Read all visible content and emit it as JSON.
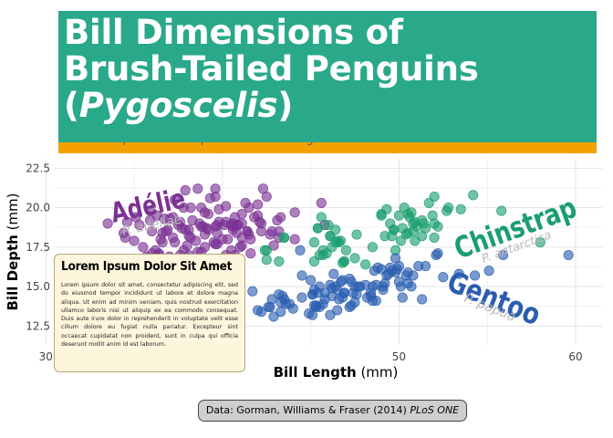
{
  "title": {
    "line1": "Bill Dimensions of",
    "line2": "Brush-Tailed Penguins",
    "paren_open": "(",
    "genus": "Pygoscelis",
    "paren_close": ")"
  },
  "subtitle": "A scatter plot of bill depth versus bill length.",
  "caption": {
    "prefix": "Data: Gorman, Williams & Fraser (2014) ",
    "journal": "PLoS ONE"
  },
  "textbox": {
    "title": "Lorem Ipsum Dolor Sit Amet",
    "body": "Lorem ipsum dolor sit amet, consectetur adipiscing elit, sed do eiusmod tempor incididunt ut labore et dolore magna aliqua. Ut enim ad minim veniam, quis nostrud exercitation ullamco laboris nisi ut aliquip ex ea commodo consequat. Duis aute irure dolor in reprehenderit in voluptate velit esse cillum dolore eu fugiat nulla pariatur. Excepteur sint occaecat cupidatat non proident, sunt in culpa qui officia deserunt mollit anim id est laborum."
  },
  "colors": {
    "adelie": "#7b3294",
    "chinstrap": "#1a9e6e",
    "gentoo": "#2a5db0",
    "title_bg": "#2aa88a",
    "strip": "#f2a100"
  },
  "chart_data": {
    "type": "scatter",
    "xlabel_bold": "Bill Length",
    "xlabel_unit": " (mm)",
    "ylabel_bold": "Bill Depth",
    "ylabel_unit": " (mm)",
    "xlim": [
      30.5,
      61.5
    ],
    "ylim": [
      11.3,
      23.1
    ],
    "xticks": [
      30,
      40,
      50,
      60
    ],
    "yticks": [
      12.5,
      15.0,
      17.5,
      20.0,
      22.5
    ],
    "grid": true,
    "legend": "direct labels",
    "series": [
      {
        "name": "Adélie",
        "species_label": "P. adeliae",
        "points": [
          [
            33.5,
            19.0
          ],
          [
            34.5,
            18.1
          ],
          [
            35.0,
            17.9
          ],
          [
            35.3,
            18.9
          ],
          [
            35.7,
            16.9
          ],
          [
            35.9,
            19.2
          ],
          [
            36.0,
            17.1
          ],
          [
            36.2,
            17.3
          ],
          [
            36.4,
            17.0
          ],
          [
            36.5,
            18.0
          ],
          [
            36.6,
            17.8
          ],
          [
            36.7,
            19.3
          ],
          [
            36.8,
            18.5
          ],
          [
            36.9,
            18.6
          ],
          [
            37.0,
            16.9
          ],
          [
            37.2,
            18.1
          ],
          [
            37.3,
            17.8
          ],
          [
            37.5,
            18.9
          ],
          [
            37.6,
            19.1
          ],
          [
            37.7,
            18.7
          ],
          [
            37.8,
            17.3
          ],
          [
            37.9,
            18.6
          ],
          [
            38.0,
            17.6
          ],
          [
            38.1,
            18.6
          ],
          [
            38.2,
            18.1
          ],
          [
            38.3,
            19.2
          ],
          [
            38.5,
            17.9
          ],
          [
            38.6,
            21.2
          ],
          [
            38.7,
            19.0
          ],
          [
            38.8,
            17.2
          ],
          [
            38.9,
            18.8
          ],
          [
            39.0,
            17.5
          ],
          [
            39.1,
            18.7
          ],
          [
            39.2,
            19.6
          ],
          [
            39.3,
            20.6
          ],
          [
            39.5,
            16.7
          ],
          [
            39.6,
            17.7
          ],
          [
            39.7,
            18.4
          ],
          [
            39.8,
            19.1
          ],
          [
            40.1,
            18.9
          ],
          [
            40.2,
            17.0
          ],
          [
            40.3,
            18.0
          ],
          [
            40.5,
            18.9
          ],
          [
            40.6,
            19.0
          ],
          [
            40.7,
            17.0
          ],
          [
            40.8,
            18.4
          ],
          [
            40.9,
            16.6
          ],
          [
            41.0,
            17.5
          ],
          [
            41.1,
            19.0
          ],
          [
            41.3,
            20.3
          ],
          [
            41.4,
            18.5
          ],
          [
            41.5,
            18.3
          ],
          [
            41.6,
            18.0
          ],
          [
            41.8,
            19.4
          ],
          [
            42.0,
            19.5
          ],
          [
            42.2,
            18.5
          ],
          [
            42.3,
            21.2
          ],
          [
            42.5,
            20.7
          ],
          [
            42.7,
            18.3
          ],
          [
            42.8,
            18.5
          ],
          [
            42.9,
            17.6
          ],
          [
            43.1,
            19.2
          ],
          [
            43.2,
            18.5
          ],
          [
            44.1,
            19.7
          ],
          [
            45.8,
            18.9
          ],
          [
            37.0,
            19.3
          ],
          [
            38.1,
            17.0
          ],
          [
            39.6,
            20.7
          ],
          [
            40.6,
            18.6
          ],
          [
            41.1,
            17.6
          ],
          [
            36.6,
            18.4
          ],
          [
            35.5,
            17.5
          ],
          [
            39.2,
            18.6
          ],
          [
            40.0,
            18.0
          ],
          [
            38.8,
            20.0
          ],
          [
            42.1,
            19.1
          ],
          [
            36.3,
            19.5
          ],
          [
            37.8,
            20.0
          ],
          [
            34.6,
            19.1
          ],
          [
            41.5,
            20.0
          ],
          [
            38.2,
            20.0
          ],
          [
            40.2,
            20.1
          ],
          [
            39.7,
            17.7
          ],
          [
            36.0,
            18.5
          ],
          [
            37.3,
            20.5
          ],
          [
            40.9,
            18.9
          ],
          [
            39.0,
            18.3
          ],
          [
            37.7,
            16.0
          ],
          [
            43.3,
            19.4
          ],
          [
            42.0,
            20.2
          ],
          [
            36.2,
            16.1
          ],
          [
            38.6,
            17.2
          ],
          [
            40.8,
            18.9
          ],
          [
            41.1,
            18.1
          ],
          [
            39.6,
            18.8
          ],
          [
            35.1,
            19.4
          ],
          [
            37.6,
            17.0
          ],
          [
            39.7,
            18.9
          ],
          [
            40.6,
            18.8
          ],
          [
            38.1,
            18.2
          ],
          [
            44.1,
            18.0
          ],
          [
            39.5,
            17.8
          ],
          [
            41.4,
            18.5
          ],
          [
            40.2,
            19.1
          ],
          [
            35.9,
            19.8
          ],
          [
            37.2,
            19.4
          ],
          [
            41.1,
            19.6
          ],
          [
            42.2,
            19.0
          ],
          [
            39.8,
            19.9
          ],
          [
            38.8,
            18.8
          ],
          [
            36.5,
            16.6
          ],
          [
            43.2,
            18.1
          ],
          [
            40.7,
            19.4
          ],
          [
            39.0,
            19.7
          ],
          [
            45.6,
            20.3
          ],
          [
            37.9,
            21.1
          ],
          [
            41.6,
            17.1
          ],
          [
            40.5,
            17.3
          ],
          [
            39.6,
            21.2
          ],
          [
            36.4,
            17.1
          ],
          [
            34.4,
            18.4
          ]
        ]
      },
      {
        "name": "Chinstrap",
        "species_label": "P. antarctica",
        "points": [
          [
            40.9,
            16.6
          ],
          [
            42.4,
            17.3
          ],
          [
            42.5,
            17.3
          ],
          [
            43.2,
            16.6
          ],
          [
            43.5,
            18.1
          ],
          [
            45.2,
            17.8
          ],
          [
            45.2,
            16.6
          ],
          [
            45.4,
            18.7
          ],
          [
            45.5,
            17.0
          ],
          [
            45.6,
            19.4
          ],
          [
            45.7,
            17.0
          ],
          [
            45.9,
            17.1
          ],
          [
            46.0,
            18.9
          ],
          [
            46.1,
            18.2
          ],
          [
            46.2,
            17.5
          ],
          [
            46.4,
            18.6
          ],
          [
            46.4,
            17.8
          ],
          [
            46.5,
            17.9
          ],
          [
            46.6,
            17.8
          ],
          [
            46.7,
            17.9
          ],
          [
            46.8,
            16.5
          ],
          [
            46.9,
            16.6
          ],
          [
            47.0,
            17.3
          ],
          [
            47.5,
            16.8
          ],
          [
            48.1,
            16.4
          ],
          [
            48.5,
            17.5
          ],
          [
            49.0,
            19.5
          ],
          [
            49.2,
            18.2
          ],
          [
            49.3,
            19.9
          ],
          [
            49.5,
            19.0
          ],
          [
            49.6,
            18.2
          ],
          [
            49.7,
            18.6
          ],
          [
            49.8,
            17.3
          ],
          [
            50.0,
            19.5
          ],
          [
            50.1,
            17.9
          ],
          [
            50.2,
            18.7
          ],
          [
            50.3,
            20.0
          ],
          [
            50.4,
            18.3
          ],
          [
            50.5,
            19.6
          ],
          [
            50.6,
            19.4
          ],
          [
            50.7,
            19.7
          ],
          [
            50.8,
            18.5
          ],
          [
            50.9,
            17.9
          ],
          [
            51.0,
            18.8
          ],
          [
            51.3,
            19.2
          ],
          [
            51.4,
            19.0
          ],
          [
            51.5,
            18.7
          ],
          [
            51.7,
            20.3
          ],
          [
            51.9,
            19.5
          ],
          [
            52.0,
            18.1
          ],
          [
            52.0,
            19.0
          ],
          [
            52.2,
            18.8
          ],
          [
            52.7,
            19.8
          ],
          [
            52.8,
            20.0
          ],
          [
            53.5,
            19.9
          ],
          [
            54.2,
            20.8
          ],
          [
            55.8,
            19.8
          ],
          [
            58.0,
            17.8
          ],
          [
            49.0,
            19.6
          ],
          [
            50.9,
            19.1
          ],
          [
            45.7,
            17.3
          ],
          [
            42.5,
            16.7
          ],
          [
            47.6,
            18.3
          ],
          [
            49.7,
            18.6
          ],
          [
            46.9,
            16.6
          ],
          [
            51.3,
            18.2
          ],
          [
            50.8,
            19.0
          ],
          [
            52.0,
            20.7
          ],
          [
            46.1,
            18.2
          ],
          [
            50.5,
            18.4
          ],
          [
            45.4,
            18.7
          ],
          [
            43.5,
            18.1
          ]
        ]
      },
      {
        "name": "Gentoo",
        "species_label": "P. papua",
        "points": [
          [
            40.9,
            13.7
          ],
          [
            41.7,
            14.7
          ],
          [
            42.0,
            13.5
          ],
          [
            42.6,
            13.7
          ],
          [
            42.7,
            13.7
          ],
          [
            42.8,
            14.2
          ],
          [
            42.9,
            13.1
          ],
          [
            43.2,
            14.5
          ],
          [
            43.3,
            13.4
          ],
          [
            43.4,
            14.4
          ],
          [
            43.5,
            14.2
          ],
          [
            43.6,
            13.9
          ],
          [
            43.8,
            13.9
          ],
          [
            44.0,
            13.6
          ],
          [
            44.4,
            17.3
          ],
          [
            44.5,
            14.3
          ],
          [
            44.9,
            13.3
          ],
          [
            45.0,
            15.4
          ],
          [
            45.1,
            14.5
          ],
          [
            45.2,
            13.8
          ],
          [
            45.3,
            13.7
          ],
          [
            45.4,
            14.6
          ],
          [
            45.5,
            13.7
          ],
          [
            45.5,
            15.0
          ],
          [
            45.7,
            13.9
          ],
          [
            45.8,
            14.6
          ],
          [
            46.1,
            13.2
          ],
          [
            46.2,
            14.4
          ],
          [
            46.3,
            15.8
          ],
          [
            46.4,
            15.0
          ],
          [
            46.5,
            13.5
          ],
          [
            46.6,
            14.2
          ],
          [
            46.7,
            15.3
          ],
          [
            46.8,
            14.3
          ],
          [
            46.9,
            14.6
          ],
          [
            47.2,
            13.7
          ],
          [
            47.3,
            13.8
          ],
          [
            47.4,
            14.6
          ],
          [
            47.5,
            14.0
          ],
          [
            47.6,
            14.5
          ],
          [
            47.7,
            15.0
          ],
          [
            47.8,
            15.0
          ],
          [
            48.1,
            15.1
          ],
          [
            48.2,
            14.3
          ],
          [
            48.4,
            14.4
          ],
          [
            48.5,
            15.0
          ],
          [
            48.6,
            16.0
          ],
          [
            48.7,
            15.1
          ],
          [
            48.8,
            16.2
          ],
          [
            49.0,
            16.1
          ],
          [
            49.1,
            15.0
          ],
          [
            49.2,
            15.2
          ],
          [
            49.3,
            15.7
          ],
          [
            49.4,
            15.8
          ],
          [
            49.5,
            16.2
          ],
          [
            49.6,
            16.0
          ],
          [
            49.8,
            15.9
          ],
          [
            49.9,
            16.1
          ],
          [
            50.0,
            15.3
          ],
          [
            50.1,
            15.0
          ],
          [
            50.2,
            14.3
          ],
          [
            50.4,
            15.7
          ],
          [
            50.5,
            15.2
          ],
          [
            50.7,
            15.0
          ],
          [
            50.8,
            15.7
          ],
          [
            51.1,
            16.3
          ],
          [
            51.3,
            14.2
          ],
          [
            51.5,
            16.3
          ],
          [
            52.1,
            17.0
          ],
          [
            52.2,
            17.1
          ],
          [
            52.5,
            15.6
          ],
          [
            53.4,
            15.8
          ],
          [
            54.3,
            15.7
          ],
          [
            55.1,
            16.0
          ],
          [
            55.9,
            17.0
          ],
          [
            59.6,
            17.0
          ],
          [
            45.1,
            13.2
          ],
          [
            46.5,
            14.8
          ],
          [
            47.5,
            15.0
          ],
          [
            44.5,
            15.7
          ],
          [
            45.8,
            14.2
          ],
          [
            46.2,
            14.9
          ],
          [
            45.1,
            14.5
          ],
          [
            46.8,
            15.4
          ],
          [
            48.4,
            14.6
          ],
          [
            49.1,
            14.8
          ],
          [
            47.3,
            15.3
          ],
          [
            43.3,
            14.0
          ],
          [
            46.9,
            14.6
          ],
          [
            50.5,
            15.9
          ],
          [
            48.7,
            14.1
          ],
          [
            47.2,
            15.5
          ],
          [
            45.2,
            14.8
          ],
          [
            49.8,
            16.8
          ],
          [
            46.1,
            15.1
          ],
          [
            50.0,
            16.3
          ],
          [
            48.5,
            14.1
          ],
          [
            45.3,
            13.8
          ],
          [
            42.2,
            13.4
          ]
        ]
      }
    ]
  },
  "annotations": {
    "adelie": "Adélie",
    "adelie_sub": "P. adeliae",
    "chinstrap": "Chinstrap",
    "chinstrap_sub": "P. antarctica",
    "gentoo": "Gentoo",
    "gentoo_sub": "P. papua"
  }
}
